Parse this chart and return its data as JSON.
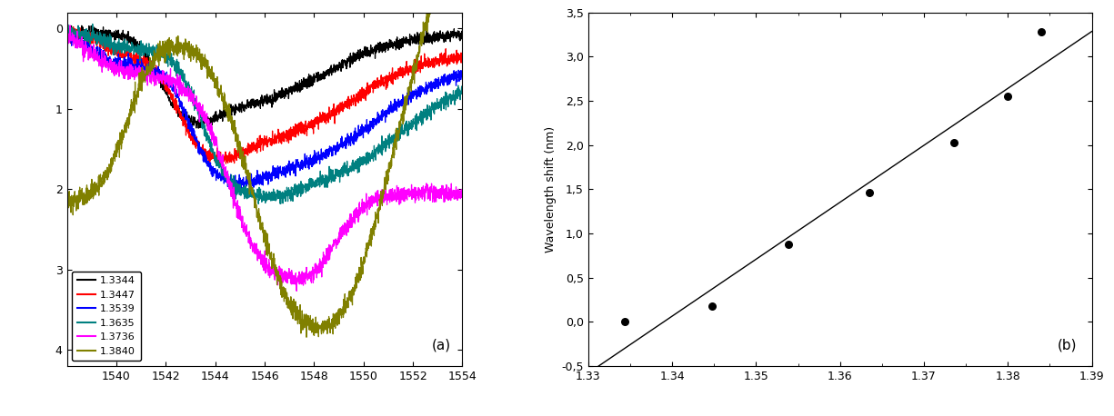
{
  "panel_a": {
    "x_min": 1538,
    "x_max": 1554,
    "x_ticks": [
      1540,
      1542,
      1544,
      1546,
      1548,
      1550,
      1552,
      1554
    ],
    "y_min": -4.2,
    "y_max": 0.2,
    "y_ticks": [
      0,
      -1,
      -2,
      -3,
      -4
    ],
    "y_tick_labels": [
      "0",
      "1",
      "2",
      "3",
      "4"
    ],
    "label": "(a)",
    "legend_entries": [
      "1.3344",
      "1.3447",
      "1.3539",
      "1.3635",
      "1.3736",
      "1.3840"
    ],
    "colors": [
      "black",
      "red",
      "blue",
      "teal",
      "magenta",
      "#808000"
    ]
  },
  "panel_b": {
    "x_pts": [
      1.3344,
      1.3447,
      1.3539,
      1.3635,
      1.3736,
      1.38,
      1.384
    ],
    "y_pts": [
      0.0,
      0.18,
      0.88,
      1.46,
      2.03,
      2.55,
      3.28
    ],
    "x_line_min": 1.33,
    "x_line_max": 1.39,
    "x_min": 1.33,
    "x_max": 1.39,
    "y_min": -0.5,
    "y_max": 3.5,
    "y_ticks": [
      -0.5,
      0.0,
      0.5,
      1.0,
      1.5,
      2.0,
      2.5,
      3.0,
      3.5
    ],
    "y_tick_labels": [
      "-0,5",
      "0,0",
      "0,5",
      "1,0",
      "1,5",
      "2,0",
      "2,5",
      "3,0",
      "3,5"
    ],
    "ylabel": "Wavelength shift (nm)",
    "label": "(b)"
  },
  "background_color": "white",
  "figure_width": 12.25,
  "figure_height": 4.58
}
